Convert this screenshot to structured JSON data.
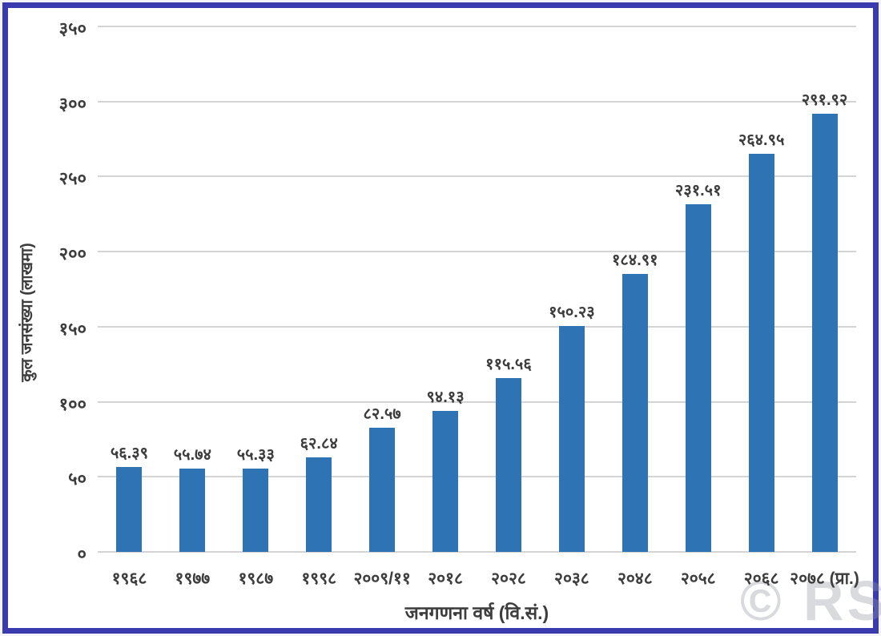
{
  "page": {
    "background": "#ffffff",
    "frame_border_color": "#3b3bb0",
    "watermark": "© RS"
  },
  "chart_data": {
    "type": "bar",
    "title": "",
    "xlabel": "जनगणना वर्ष (वि.सं.)",
    "ylabel": "कुल जनसंख्या (लाखमा)",
    "categories": [
      "१९६८",
      "१९७७",
      "१९८७",
      "१९९८",
      "२००९/११",
      "२०१८",
      "२०२८",
      "२०३८",
      "२०४८",
      "२०५८",
      "२०६८",
      "२०७८ (प्रा.)"
    ],
    "values": [
      56.39,
      55.74,
      55.33,
      62.84,
      82.57,
      94.13,
      115.56,
      150.23,
      184.91,
      231.51,
      264.95,
      291.92
    ],
    "value_labels": [
      "५६.३९",
      "५५.७४",
      "५५.३३",
      "६२.८४",
      "८२.५७",
      "९४.१३",
      "११५.५६",
      "१५०.२३",
      "१८४.९१",
      "२३१.५१",
      "२६४.९५",
      "२९१.९२"
    ],
    "y_ticks": [
      {
        "value": 350,
        "label": "३५०"
      },
      {
        "value": 300,
        "label": "३००"
      },
      {
        "value": 250,
        "label": "२५०"
      },
      {
        "value": 200,
        "label": "२००"
      },
      {
        "value": 150,
        "label": "१५०"
      },
      {
        "value": 100,
        "label": "१००"
      },
      {
        "value": 50,
        "label": "५०"
      },
      {
        "value": 0,
        "label": "०"
      }
    ],
    "ylim": [
      0,
      350
    ],
    "grid": true,
    "legend": false,
    "bar_color": "#2e74b4",
    "gridline_color": "#d4d4d4",
    "text_color": "#3d3d3d"
  }
}
